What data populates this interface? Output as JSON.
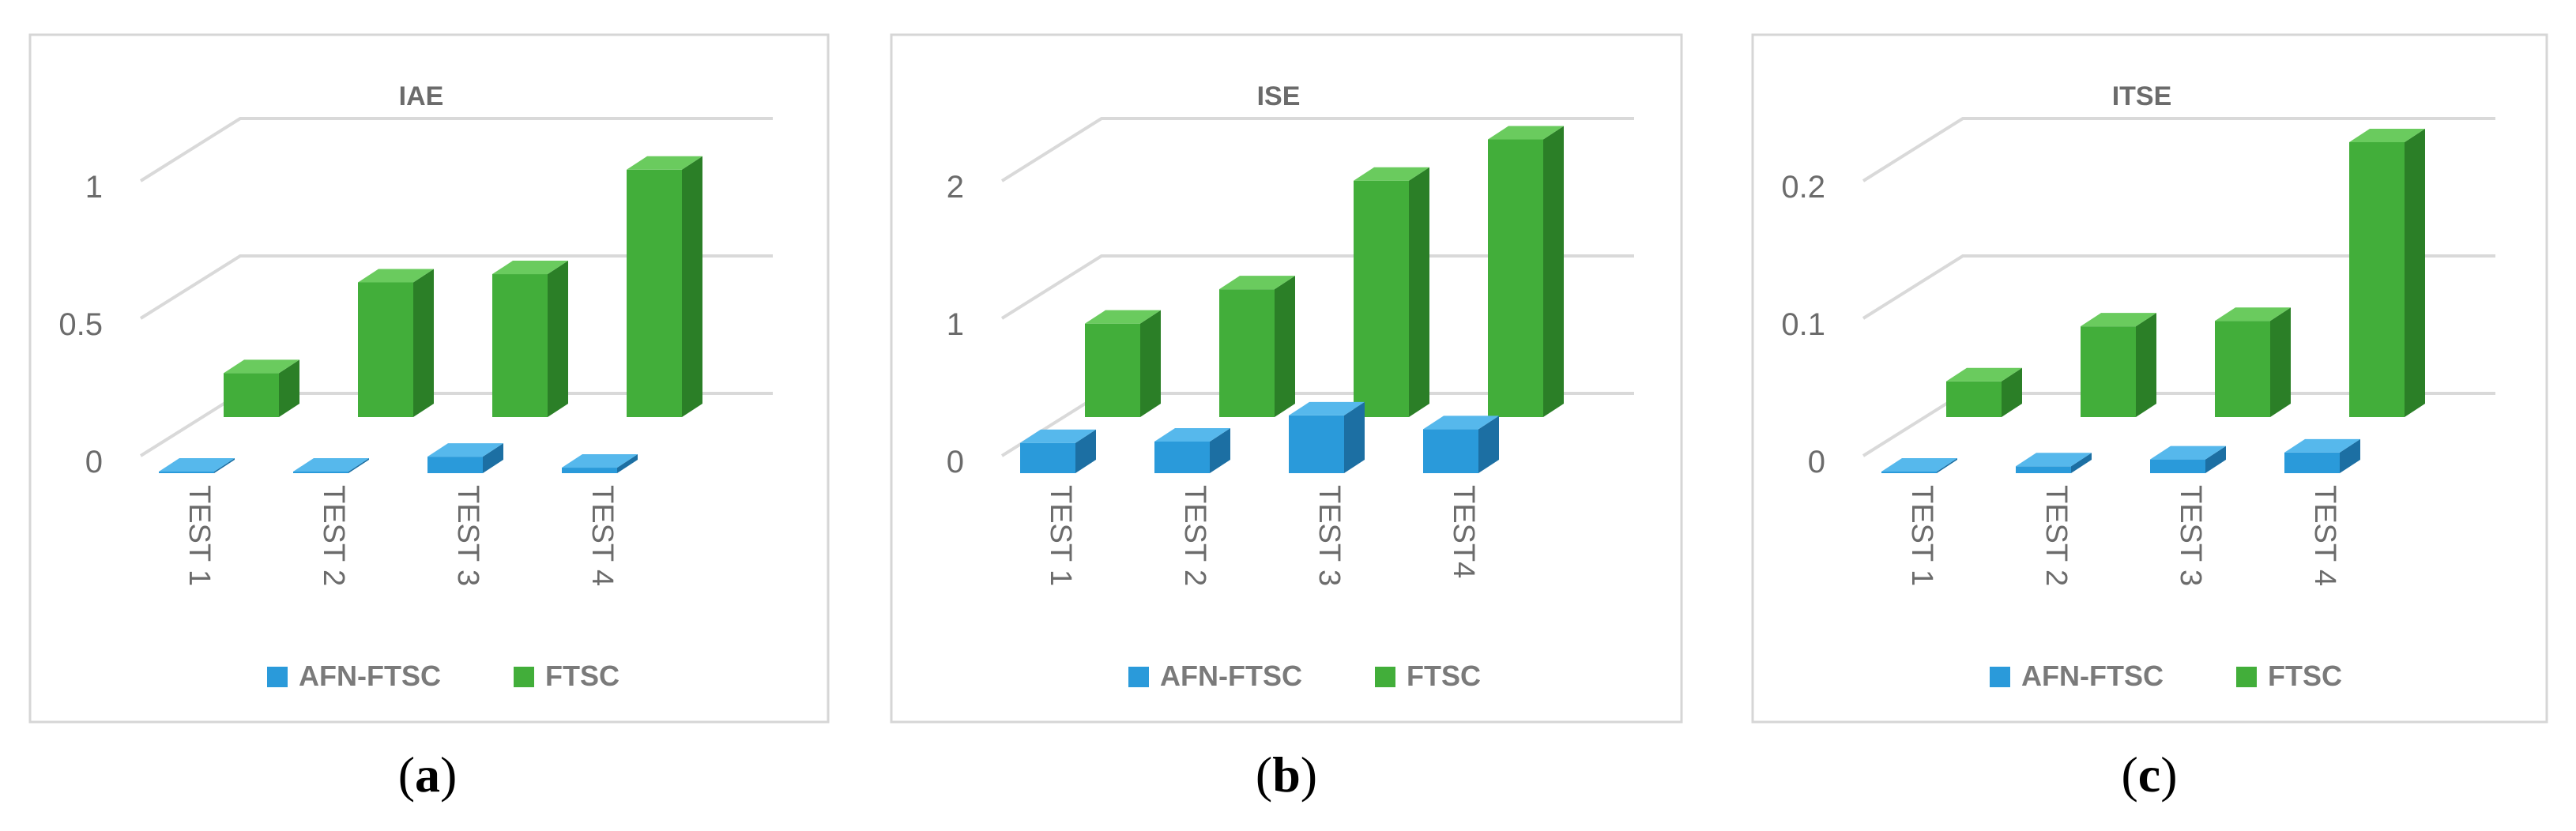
{
  "colors": {
    "afn_front": "#2A9ADA",
    "afn_top": "#56B8EC",
    "afn_side": "#1C6FA3",
    "ftsc_front": "#42AE3A",
    "ftsc_top": "#6ACB5E",
    "ftsc_side": "#2B7F27",
    "grid": "#D9D9D9",
    "frame": "#D6D6D6",
    "text": "#6B6B6B",
    "legend_text": "#7A7A7A"
  },
  "chart_data": [
    {
      "type": "bar",
      "title": "IAE",
      "caption_letter": "a",
      "categories": [
        "TEST 1",
        "TEST 2",
        "TEST 3",
        "TEST 4"
      ],
      "yticks": [
        "0",
        "0.5",
        "1"
      ],
      "ylim": [
        0,
        1
      ],
      "series": [
        {
          "name": "AFN-FTSC",
          "values": [
            0.005,
            0.005,
            0.06,
            0.02
          ]
        },
        {
          "name": "FTSC",
          "values": [
            0.16,
            0.49,
            0.52,
            0.9
          ]
        }
      ],
      "legend_position": "bottom"
    },
    {
      "type": "bar",
      "title": "ISE",
      "caption_letter": "b",
      "categories": [
        "TEST 1",
        "TEST 2",
        "TEST 3",
        "TEST4"
      ],
      "yticks": [
        "0",
        "1",
        "2"
      ],
      "ylim": [
        0,
        2
      ],
      "series": [
        {
          "name": "AFN-FTSC",
          "values": [
            0.22,
            0.23,
            0.42,
            0.32
          ]
        },
        {
          "name": "FTSC",
          "values": [
            0.68,
            0.93,
            1.72,
            2.02
          ]
        }
      ],
      "legend_position": "bottom"
    },
    {
      "type": "bar",
      "title": "ITSE",
      "caption_letter": "c",
      "categories": [
        "TEST 1",
        "TEST 2",
        "TEST 3",
        "TEST 4"
      ],
      "yticks": [
        "0",
        "0.1",
        "0.2"
      ],
      "ylim": [
        0,
        0.2
      ],
      "series": [
        {
          "name": "AFN-FTSC",
          "values": [
            0.001,
            0.005,
            0.01,
            0.015
          ]
        },
        {
          "name": "FTSC",
          "values": [
            0.026,
            0.066,
            0.07,
            0.2
          ]
        }
      ],
      "legend_position": "bottom"
    }
  ]
}
